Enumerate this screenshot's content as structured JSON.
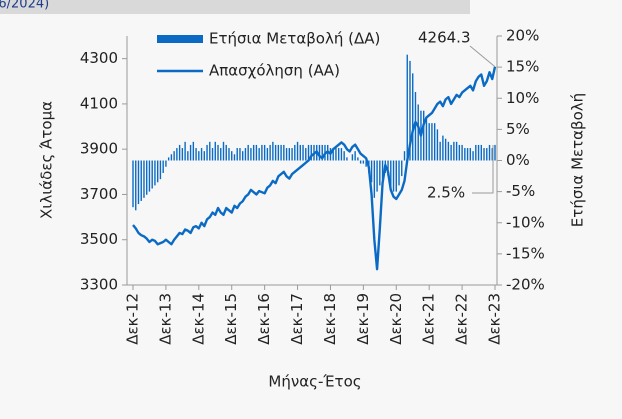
{
  "header_note": "/6/2024)",
  "chart_data": {
    "type": "bar-line",
    "x_label": "Μήνας-Έτος",
    "y_label": "Χιλιάδες Άτομα",
    "y2_label": "Ετήσια Μεταβολή",
    "categories": [
      "Δεκ-12",
      null,
      null,
      null,
      null,
      null,
      null,
      null,
      null,
      null,
      null,
      null,
      "Δεκ-13",
      null,
      null,
      null,
      null,
      null,
      null,
      null,
      null,
      null,
      null,
      null,
      "Δεκ-14",
      null,
      null,
      null,
      null,
      null,
      null,
      null,
      null,
      null,
      null,
      null,
      "Δεκ-15",
      null,
      null,
      null,
      null,
      null,
      null,
      null,
      null,
      null,
      null,
      null,
      "Δεκ-16",
      null,
      null,
      null,
      null,
      null,
      null,
      null,
      null,
      null,
      null,
      null,
      "Δεκ-17",
      null,
      null,
      null,
      null,
      null,
      null,
      null,
      null,
      null,
      null,
      null,
      "Δεκ-18",
      null,
      null,
      null,
      null,
      null,
      null,
      null,
      null,
      null,
      null,
      null,
      "Δεκ-19",
      null,
      null,
      null,
      null,
      null,
      null,
      null,
      null,
      null,
      null,
      null,
      "Δεκ-20",
      null,
      null,
      null,
      null,
      null,
      null,
      null,
      null,
      null,
      null,
      null,
      "Δεκ-21",
      null,
      null,
      null,
      null,
      null,
      null,
      null,
      null,
      null,
      null,
      null,
      "Δεκ-22",
      null,
      null,
      null,
      null,
      null,
      null,
      null,
      null,
      null,
      null,
      null,
      "Δεκ-23"
    ],
    "ylim": [
      3300,
      4400
    ],
    "yticks": [
      3300,
      3500,
      3700,
      3900,
      4100,
      4300
    ],
    "y2lim": [
      -20,
      20
    ],
    "y2ticks": [
      {
        "value": -20,
        "label": "-20%"
      },
      {
        "value": -15,
        "label": "-15%"
      },
      {
        "value": -10,
        "label": "-10%"
      },
      {
        "value": -5,
        "label": "-5%"
      },
      {
        "value": 0,
        "label": "0%"
      },
      {
        "value": 5,
        "label": "5%"
      },
      {
        "value": 10,
        "label": "10%"
      },
      {
        "value": 15,
        "label": "15%"
      },
      {
        "value": 20,
        "label": "20%"
      }
    ],
    "series": [
      {
        "name": "Ετήσια Μεταβολή (ΔΑ)",
        "type": "bar",
        "axis": "y2",
        "color": "#0b6bc4",
        "values": [
          -7.5,
          -8,
          -7,
          -6.5,
          -6,
          -5.5,
          -5,
          -4.5,
          -4,
          -3.5,
          -3,
          -2,
          -1,
          0.5,
          1,
          1.5,
          2,
          2.5,
          2,
          3,
          1.5,
          2.5,
          3,
          2,
          1.5,
          2,
          1.5,
          2.5,
          3,
          2,
          3,
          2.5,
          2,
          3,
          2.5,
          2,
          1.5,
          1,
          2,
          2,
          1.5,
          2,
          2.5,
          2,
          2.5,
          2.5,
          2,
          2.5,
          2.5,
          2,
          2.5,
          3,
          2.5,
          2.5,
          2.5,
          2.5,
          2,
          2,
          2,
          2.5,
          3,
          2.5,
          2.5,
          2,
          2.5,
          2.5,
          2.5,
          2.5,
          2.5,
          2.5,
          2.5,
          2.5,
          2,
          2,
          2,
          2,
          2,
          1.5,
          0.5,
          0,
          1,
          1.5,
          0.5,
          -0.5,
          -0.5,
          -1,
          -2,
          -3.5,
          -6,
          -5,
          -4,
          -3,
          -2,
          -2.5,
          -4.5,
          -5,
          -5,
          -4,
          -2.5,
          1.5,
          17,
          16,
          14,
          11,
          9,
          8,
          8,
          7,
          6,
          6,
          6,
          5,
          3,
          4,
          3.5,
          3,
          2.5,
          3,
          3,
          2.5,
          2.5,
          2,
          2,
          2,
          1.5,
          2.5,
          2.5,
          2.5,
          2,
          2,
          2.5,
          2,
          2.5
        ]
      },
      {
        "name": "Απασχόληση (ΑΑ)",
        "type": "line",
        "color": "#0b6bc4",
        "values": [
          3565,
          3550,
          3530,
          3520,
          3515,
          3505,
          3490,
          3500,
          3495,
          3480,
          3485,
          3490,
          3500,
          3490,
          3480,
          3500,
          3515,
          3530,
          3525,
          3545,
          3540,
          3530,
          3555,
          3560,
          3550,
          3575,
          3560,
          3590,
          3600,
          3620,
          3610,
          3640,
          3620,
          3610,
          3640,
          3630,
          3620,
          3650,
          3640,
          3660,
          3670,
          3690,
          3700,
          3720,
          3710,
          3700,
          3715,
          3710,
          3705,
          3730,
          3740,
          3760,
          3750,
          3780,
          3790,
          3800,
          3780,
          3770,
          3790,
          3800,
          3810,
          3820,
          3830,
          3840,
          3850,
          3870,
          3880,
          3890,
          3870,
          3860,
          3880,
          3890,
          3880,
          3900,
          3910,
          3920,
          3930,
          3920,
          3900,
          3890,
          3910,
          3920,
          3900,
          3880,
          3870,
          3860,
          3820,
          3700,
          3500,
          3370,
          3550,
          3750,
          3830,
          3800,
          3720,
          3690,
          3680,
          3700,
          3720,
          3760,
          3850,
          3920,
          3980,
          4020,
          4000,
          3960,
          4010,
          4040,
          4050,
          4060,
          4080,
          4100,
          4110,
          4090,
          4120,
          4130,
          4100,
          4120,
          4140,
          4130,
          4150,
          4160,
          4170,
          4180,
          4160,
          4200,
          4220,
          4230,
          4180,
          4200,
          4240,
          4210,
          4264.3
        ]
      }
    ],
    "annotations": [
      {
        "text": "4264.3"
      },
      {
        "text": "2.5%"
      }
    ]
  }
}
